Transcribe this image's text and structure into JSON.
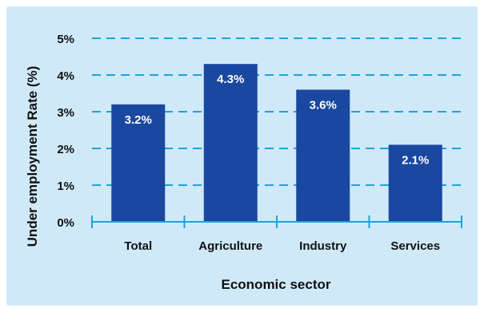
{
  "chart_data": {
    "type": "bar",
    "title": "",
    "xlabel": "Economic sector",
    "ylabel": "Under employment Rate (%)",
    "categories": [
      "Total",
      "Agriculture",
      "Industry",
      "Services"
    ],
    "values": [
      3.2,
      4.3,
      3.6,
      2.1
    ],
    "data_labels": [
      "3.2%",
      "4.3%",
      "3.6%",
      "2.1%"
    ],
    "y_ticks": [
      0,
      1,
      2,
      3,
      4,
      5
    ],
    "y_tick_labels": [
      "0%",
      "1%",
      "2%",
      "3%",
      "4%",
      "5%"
    ],
    "ylim": [
      0,
      5
    ],
    "grid": "horizontal dashed",
    "legend": "none",
    "colors": {
      "background": "#cfe9f9",
      "bar": "#1a47a0",
      "grid": "#1ea3d9",
      "axis": "#1ea3d9"
    }
  }
}
